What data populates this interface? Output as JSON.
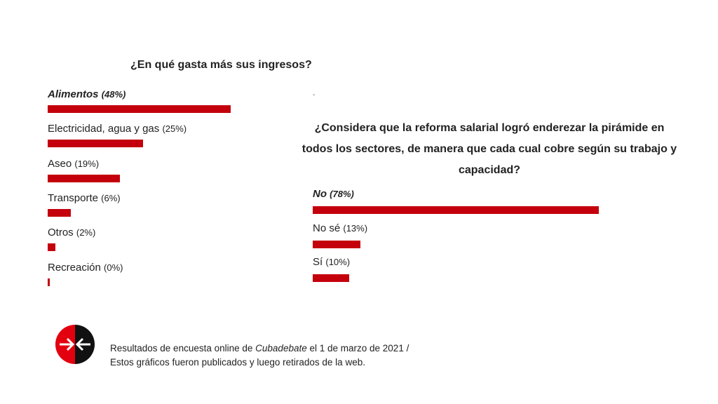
{
  "chart_data": [
    {
      "type": "bar",
      "orientation": "horizontal",
      "title": "¿En qué gasta más sus ingresos?",
      "categories": [
        "Alimentos",
        "Electricidad, agua y gas",
        "Aseo",
        "Transporte",
        "Otros",
        "Recreación"
      ],
      "values": [
        48,
        25,
        19,
        6,
        2,
        0
      ],
      "pct_labels": [
        "(48%)",
        "(25%)",
        "(19%)",
        "(6%)",
        "(2%)",
        "(0%)"
      ],
      "xlim": [
        0,
        100
      ],
      "color": "#c4000c"
    },
    {
      "type": "bar",
      "orientation": "horizontal",
      "title": "¿Considera que la reforma salarial logró enderezar la pirámide en todos los sectores, de manera que cada cual cobre según su trabajo y capacidad?",
      "categories": [
        "No",
        "No sé",
        "Sí"
      ],
      "values": [
        78,
        13,
        10
      ],
      "pct_labels": [
        "(78%)",
        "(13%)",
        "(10%)"
      ],
      "xlim": [
        0,
        100
      ],
      "color": "#c4000c"
    }
  ],
  "dash": "-",
  "footer": {
    "line1_before": "Resultados de encuesta online de ",
    "line1_italic": "Cubadebate",
    "line1_after": " el 1 de marzo de 2021 /",
    "line2": "Estos gráficos fueron publicados y luego retirados de la web."
  },
  "logo": {
    "icon": "arrows-inward-logo-icon",
    "colors": [
      "#e3000f",
      "#111111"
    ]
  }
}
